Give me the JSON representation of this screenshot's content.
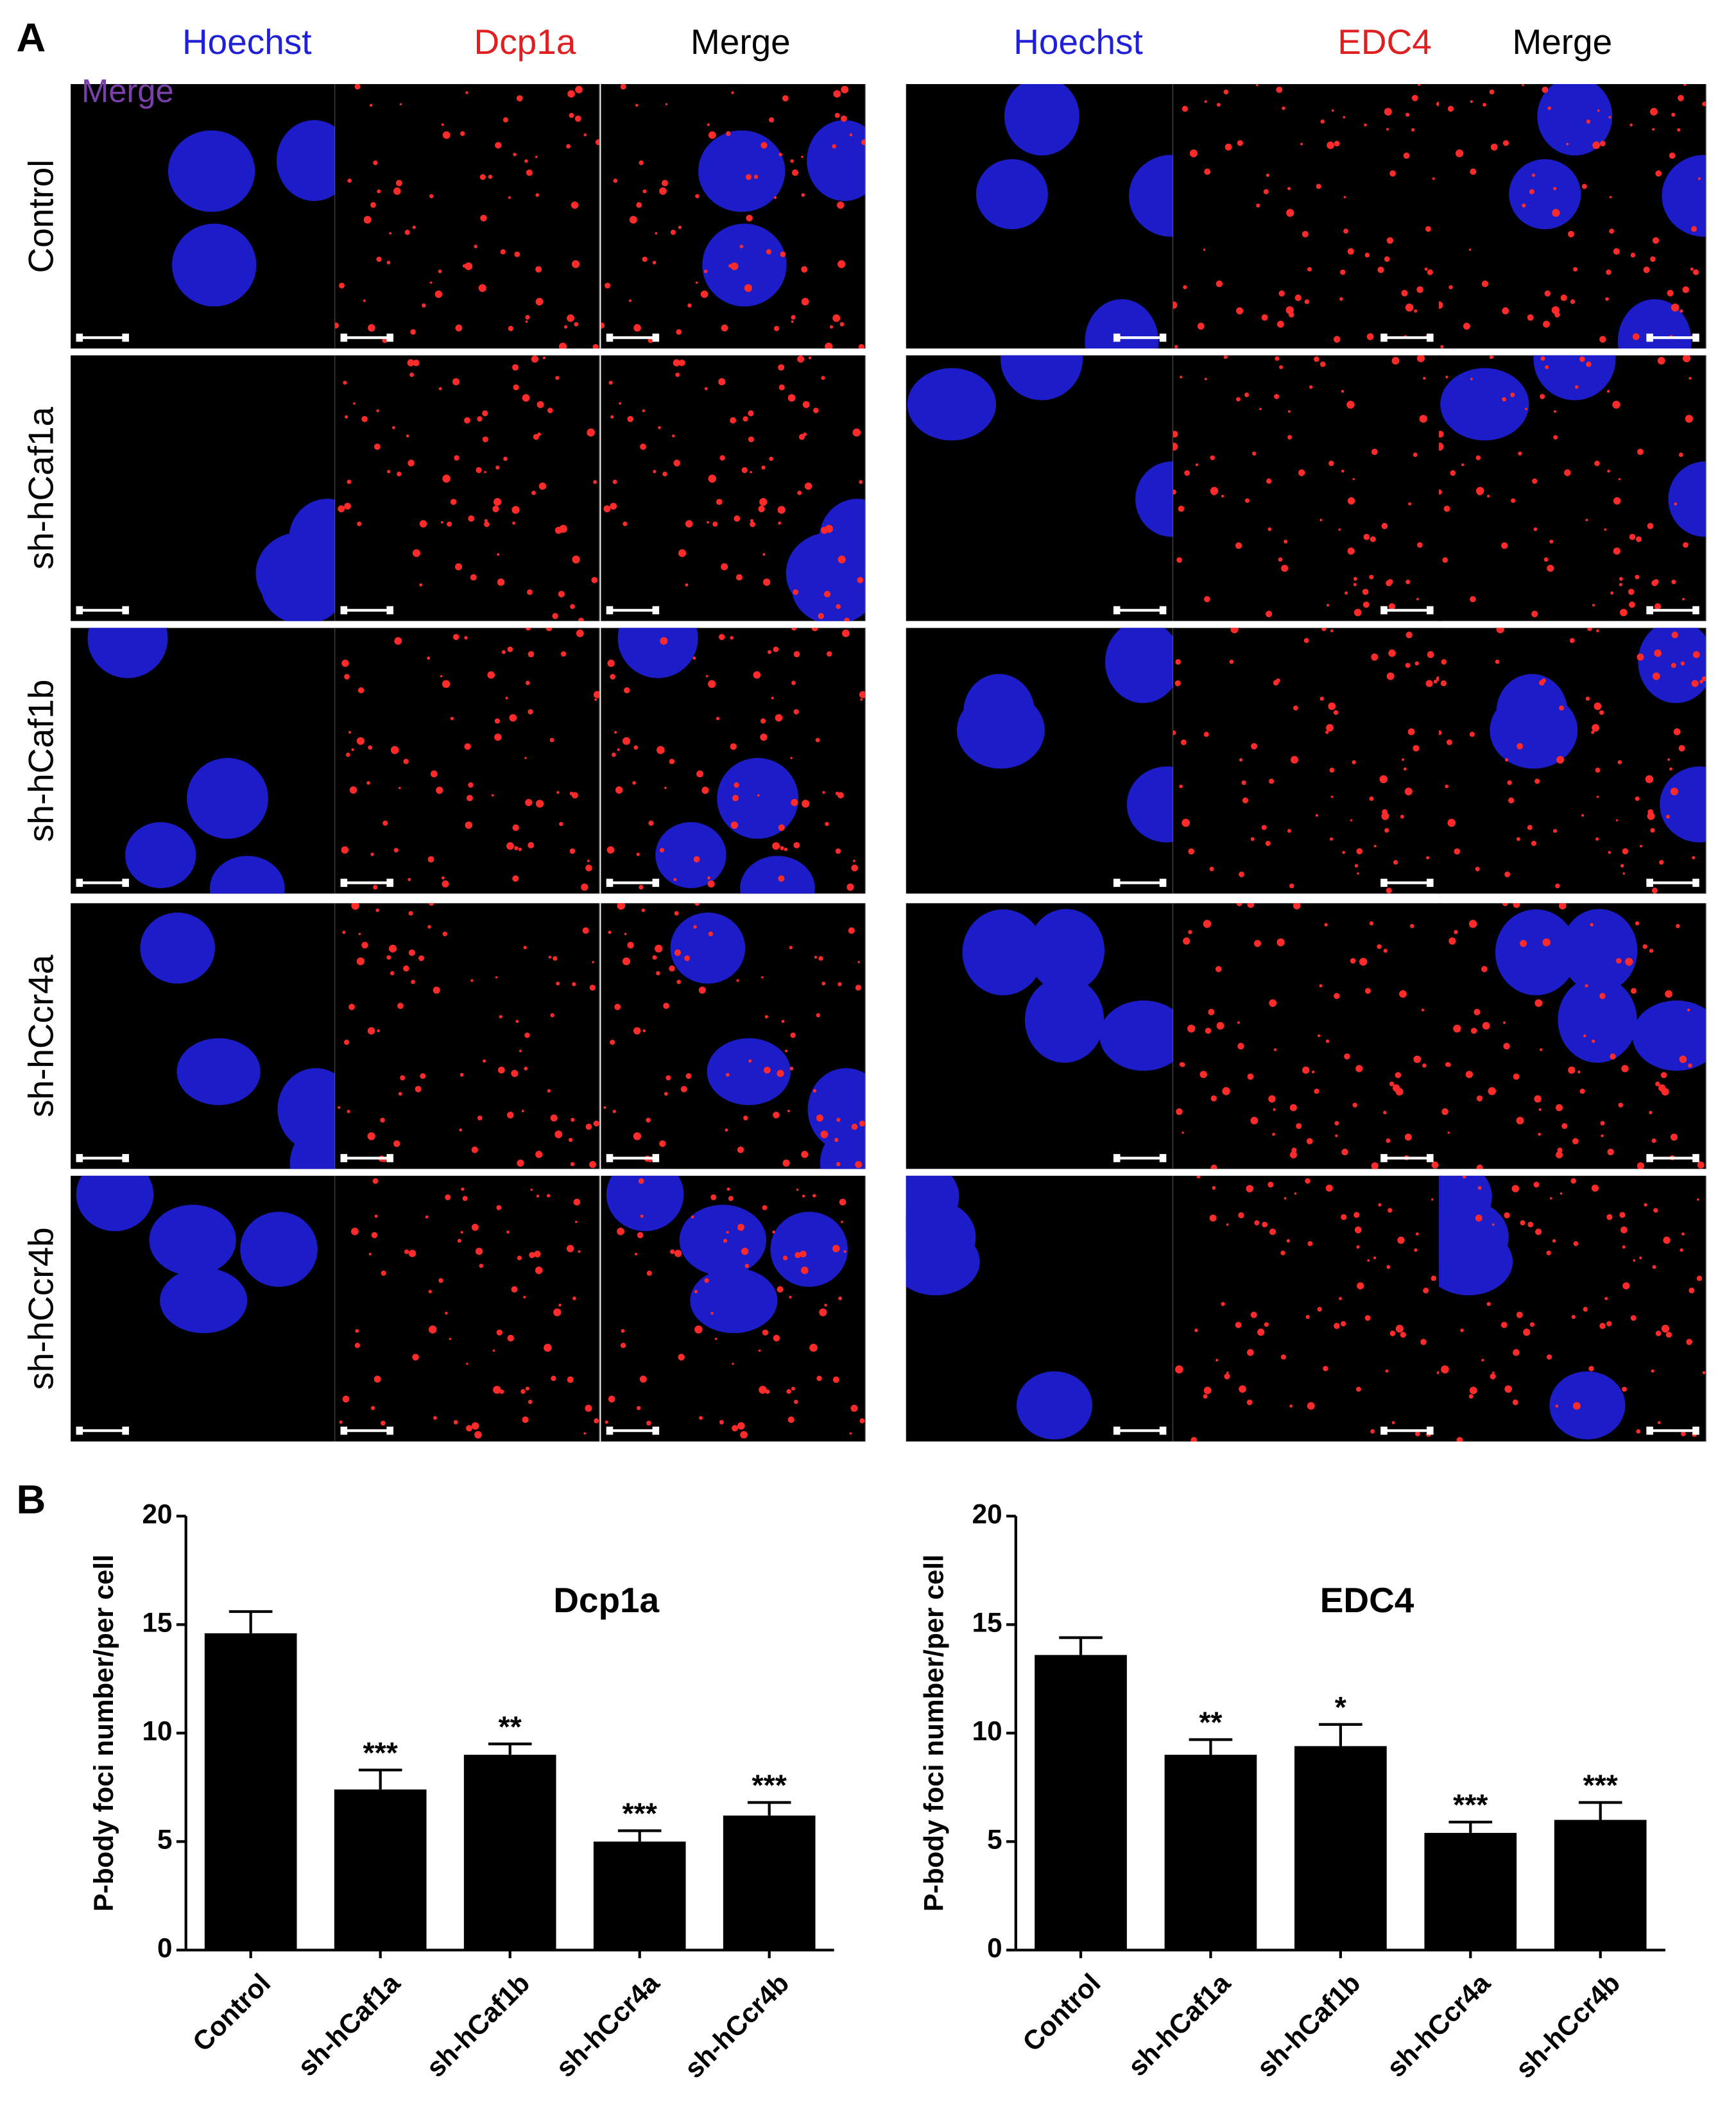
{
  "figure": {
    "panel_labels": [
      "A",
      "B"
    ],
    "groups": [
      {
        "headers": [
          "Hoechst",
          "Dcp1a",
          "Merge"
        ]
      },
      {
        "headers": [
          "Hoechst",
          "EDC4",
          "Merge"
        ]
      }
    ],
    "row_labels": [
      "Control",
      "sh-hCaf1a",
      "sh-hCaf1b",
      "sh-hCcr4a",
      "sh-hCcr4b"
    ],
    "overlay_label": "Merge"
  },
  "chart_data": [
    {
      "type": "bar",
      "title": "Dcp1a",
      "y_label": "P-body foci number/per cell",
      "categories": [
        "Control",
        "sh-hCaf1a",
        "sh-hCaf1b",
        "sh-hCcr4a",
        "sh-hCcr4b"
      ],
      "values": [
        14.6,
        7.4,
        9.0,
        5.0,
        6.2
      ],
      "errors": [
        1.0,
        0.9,
        0.5,
        0.5,
        0.6
      ],
      "annotations": [
        null,
        "***",
        "**",
        "***",
        "***"
      ],
      "color": "#000000",
      "ylim": [
        0,
        20
      ],
      "yticks": [
        0,
        5,
        10,
        15,
        20
      ]
    },
    {
      "type": "bar",
      "title": "EDC4",
      "y_label": "P-body foci number/per cell",
      "categories": [
        "Control",
        "sh-hCaf1a",
        "sh-hCaf1b",
        "sh-hCcr4a",
        "sh-hCcr4b"
      ],
      "values": [
        13.6,
        9.0,
        9.4,
        5.4,
        6.0
      ],
      "errors": [
        0.8,
        0.7,
        1.0,
        0.5,
        0.8
      ],
      "annotations": [
        null,
        "**",
        "*",
        "***",
        "***"
      ],
      "color": "#000000",
      "ylim": [
        0,
        20
      ],
      "yticks": [
        0,
        5,
        10,
        15,
        20
      ]
    }
  ]
}
